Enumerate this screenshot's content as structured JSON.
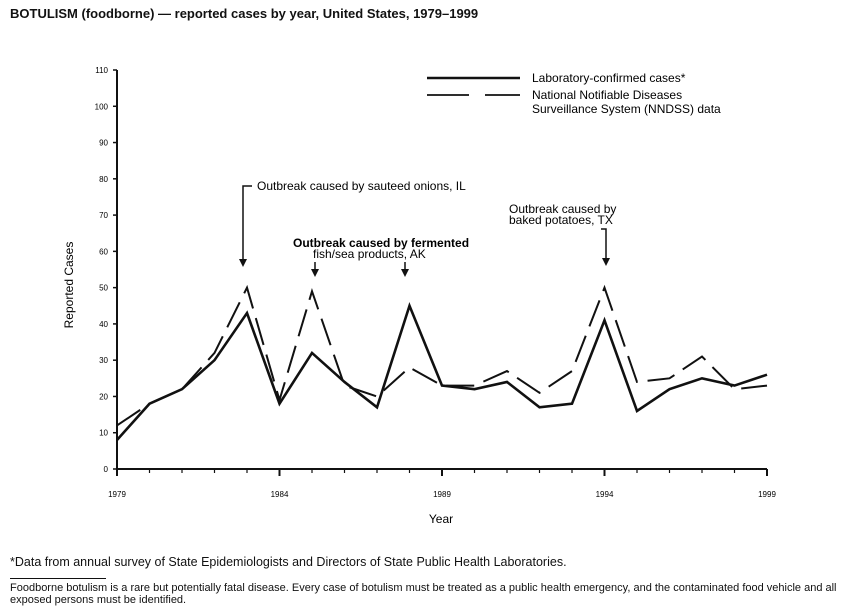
{
  "title": "BOTULISM (foodborne) — reported cases by year, United States, 1979–1999",
  "chart_data": {
    "type": "line",
    "title": "BOTULISM (foodborne) — reported cases by year, United States, 1979–1999",
    "xlabel": "Year",
    "ylabel": "Reported Cases",
    "xlim": [
      1979,
      1999
    ],
    "ylim": [
      0,
      110
    ],
    "x_tick_labels": [
      "1979",
      "1984",
      "1989",
      "1994",
      "1999"
    ],
    "y_tick_labels": [
      "0",
      "10",
      "20",
      "30",
      "40",
      "50",
      "60",
      "70",
      "80",
      "90",
      "100",
      "110"
    ],
    "grid": false,
    "legend_placement": "top-right",
    "x": [
      1979,
      1980,
      1981,
      1982,
      1983,
      1984,
      1985,
      1986,
      1987,
      1988,
      1989,
      1990,
      1991,
      1992,
      1993,
      1994,
      1995,
      1996,
      1997,
      1998,
      1999
    ],
    "series": [
      {
        "name": "Laboratory-confirmed cases*",
        "style": "solid",
        "values": [
          8,
          18,
          22,
          30,
          43,
          18,
          32,
          24,
          17,
          45,
          23,
          22,
          24,
          17,
          18,
          41,
          16,
          22,
          25,
          23,
          26
        ]
      },
      {
        "name": "National Notifiable Diseases Surveillance System (NNDSS) data",
        "style": "dashed",
        "values": [
          12,
          18,
          22,
          32,
          50,
          19,
          49,
          23,
          20,
          28,
          23,
          23,
          27,
          21,
          27,
          50,
          24,
          25,
          31,
          22,
          23
        ]
      }
    ],
    "legend": {
      "solid_label": "Laboratory-confirmed cases*",
      "dashed_label_line1": "National Notifiable Diseases",
      "dashed_label_line2": "Surveillance System (NNDSS) data"
    },
    "annotations": [
      {
        "year": 1983,
        "text": "Outbreak caused by sauteed onions, IL"
      },
      {
        "years": [
          1985,
          1988
        ],
        "line1": "Outbreak caused by fermented",
        "line2": "fish/sea products, AK"
      },
      {
        "year": 1994,
        "line1": "Outbreak caused by",
        "line2": "baked potatoes, TX"
      }
    ]
  },
  "footnote": "*Data from annual survey of State Epidemiologists and Directors of State Public Health Laboratories.",
  "footer": "Foodborne botulism is a rare but potentially fatal disease. Every case of botulism must be treated as a public health emergency, and the contaminated food vehicle and all exposed persons must be identified."
}
